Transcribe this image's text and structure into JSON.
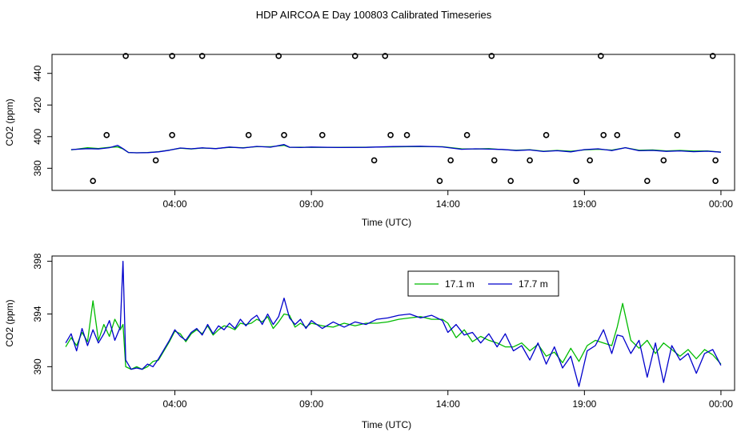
{
  "title": "HDP AIRCOA E  Day 100803  Calibrated Timeseries",
  "colors": {
    "green": "#00bb00",
    "blue": "#0000cc",
    "axis": "#000000"
  },
  "chart_data": [
    {
      "type": "line",
      "panel": "top",
      "xlabel": "Time (UTC)",
      "ylabel": "CO2 (ppm)",
      "xlim": [
        -0.5,
        24.5
      ],
      "ylim": [
        366,
        452
      ],
      "x_ticks": [
        4,
        9,
        14,
        19,
        24
      ],
      "x_tick_labels": [
        "04:00",
        "09:00",
        "14:00",
        "19:00",
        "00:00"
      ],
      "y_ticks": [
        380,
        400,
        420,
        440
      ],
      "y_tick_labels": [
        "380",
        "400",
        "420",
        "440"
      ],
      "grid": false,
      "series": [
        {
          "color": "green",
          "x": [
            0.2,
            0.8,
            1.2,
            1.6,
            1.9,
            2.1,
            2.3,
            2.6,
            3.0,
            3.4,
            3.8,
            4.2,
            4.6,
            5.0,
            5.5,
            6.0,
            6.5,
            7.0,
            7.5,
            8.0,
            8.2,
            8.6,
            9.0,
            10.0,
            11.0,
            12.0,
            13.0,
            13.8,
            14.5,
            15.0,
            15.5,
            16.0,
            16.5,
            17.0,
            17.5,
            18.0,
            18.5,
            19.0,
            19.5,
            20.0,
            20.5,
            21.0,
            21.5,
            22.0,
            22.5,
            23.0,
            23.5,
            24.0
          ],
          "y": [
            391.6,
            393.0,
            392.5,
            393.2,
            393.5,
            392.2,
            390.0,
            389.8,
            390.0,
            390.5,
            391.5,
            392.7,
            392.2,
            392.8,
            392.5,
            393.2,
            393.0,
            393.6,
            393.6,
            394.5,
            393.2,
            393.3,
            393.2,
            393.2,
            393.3,
            393.5,
            393.7,
            393.6,
            392.3,
            392.2,
            392.4,
            391.8,
            391.4,
            391.7,
            390.8,
            391.3,
            390.8,
            391.6,
            392.0,
            391.5,
            393.0,
            391.4,
            391.6,
            391.0,
            391.3,
            390.9,
            391.0,
            390.2
          ]
        },
        {
          "color": "blue",
          "x": [
            0.2,
            0.8,
            1.2,
            1.6,
            1.9,
            2.1,
            2.3,
            2.6,
            3.0,
            3.4,
            3.8,
            4.2,
            4.6,
            5.0,
            5.5,
            6.0,
            6.5,
            7.0,
            7.5,
            8.0,
            8.2,
            8.6,
            9.0,
            10.0,
            11.0,
            12.0,
            13.0,
            13.8,
            14.5,
            15.0,
            15.5,
            16.0,
            16.5,
            17.0,
            17.5,
            18.0,
            18.5,
            19.0,
            19.5,
            20.0,
            20.5,
            21.0,
            21.5,
            22.0,
            22.5,
            23.0,
            23.5,
            24.0
          ],
          "y": [
            391.8,
            392.4,
            392.2,
            393.0,
            394.5,
            392.4,
            390.0,
            389.8,
            389.9,
            390.4,
            391.4,
            392.8,
            392.3,
            392.9,
            392.4,
            393.4,
            392.8,
            393.8,
            393.3,
            395.0,
            393.3,
            393.1,
            393.4,
            393.1,
            393.2,
            393.7,
            393.9,
            393.5,
            392.0,
            392.3,
            392.1,
            391.9,
            391.2,
            391.6,
            390.6,
            391.1,
            390.4,
            391.8,
            392.3,
            391.2,
            393.0,
            391.1,
            391.3,
            390.7,
            391.0,
            390.5,
            390.8,
            390.2
          ]
        }
      ],
      "calibration_points": {
        "x": [
          1.5,
          2.2,
          1.0,
          3.3,
          3.9,
          3.9,
          5.0,
          6.7,
          7.8,
          8.0,
          9.4,
          10.6,
          11.3,
          11.7,
          11.9,
          12.5,
          13.7,
          14.1,
          14.7,
          15.6,
          15.7,
          16.3,
          17.0,
          17.6,
          18.7,
          19.2,
          19.6,
          19.7,
          20.2,
          21.3,
          21.9,
          22.4,
          23.7,
          23.8,
          23.8
        ],
        "y": [
          401,
          451,
          372,
          385,
          451,
          401,
          451,
          401,
          451,
          401,
          401,
          451,
          385,
          451,
          401,
          401,
          372,
          385,
          401,
          451,
          385,
          372,
          385,
          401,
          372,
          385,
          451,
          401,
          401,
          372,
          385,
          401,
          451,
          385,
          372
        ]
      }
    },
    {
      "type": "line",
      "panel": "bottom",
      "xlabel": "Time (UTC)",
      "ylabel": "CO2 (ppm)",
      "xlim": [
        -0.5,
        24.5
      ],
      "ylim": [
        388.2,
        398.4
      ],
      "x_ticks": [
        4,
        9,
        14,
        19,
        24
      ],
      "x_tick_labels": [
        "04:00",
        "09:00",
        "14:00",
        "19:00",
        "00:00"
      ],
      "y_ticks": [
        390,
        394,
        398
      ],
      "y_tick_labels": [
        "390",
        "394",
        "398"
      ],
      "grid": false,
      "legend": "top-center",
      "series": [
        {
          "name": "17.1 m",
          "color": "green",
          "x": [
            0.0,
            0.2,
            0.4,
            0.6,
            0.8,
            1.0,
            1.2,
            1.4,
            1.6,
            1.8,
            2.0,
            2.1,
            2.2,
            2.4,
            2.6,
            2.8,
            3.0,
            3.2,
            3.4,
            3.6,
            3.8,
            4.0,
            4.2,
            4.4,
            4.6,
            4.8,
            5.0,
            5.2,
            5.4,
            5.6,
            5.8,
            6.0,
            6.2,
            6.4,
            6.6,
            6.8,
            7.0,
            7.2,
            7.4,
            7.6,
            7.8,
            8.0,
            8.2,
            8.4,
            8.6,
            8.8,
            9.0,
            9.4,
            9.8,
            10.2,
            10.6,
            11.0,
            11.4,
            11.8,
            12.2,
            12.6,
            13.0,
            13.4,
            13.8,
            14.0,
            14.3,
            14.6,
            14.9,
            15.2,
            15.5,
            15.8,
            16.1,
            16.4,
            16.7,
            17.0,
            17.3,
            17.6,
            17.9,
            18.2,
            18.5,
            18.8,
            19.1,
            19.4,
            19.7,
            20.0,
            20.2,
            20.4,
            20.7,
            21.0,
            21.3,
            21.6,
            21.9,
            22.2,
            22.5,
            22.8,
            23.1,
            23.4,
            23.7,
            24.0
          ],
          "y": [
            391.5,
            392.2,
            391.6,
            392.6,
            391.9,
            395.0,
            392.0,
            393.2,
            392.3,
            393.6,
            392.8,
            393.2,
            390.0,
            389.8,
            390.0,
            389.8,
            390.0,
            390.4,
            390.5,
            391.2,
            391.9,
            392.7,
            392.5,
            391.9,
            392.5,
            392.8,
            392.5,
            393.1,
            392.4,
            392.8,
            393.1,
            393.0,
            392.8,
            393.3,
            393.2,
            393.3,
            393.6,
            393.4,
            393.8,
            392.9,
            393.4,
            394.0,
            393.9,
            393.0,
            393.3,
            393.0,
            393.3,
            393.1,
            393.0,
            393.3,
            393.1,
            393.3,
            393.3,
            393.4,
            393.6,
            393.7,
            393.8,
            393.6,
            393.6,
            393.3,
            392.2,
            392.8,
            391.9,
            392.3,
            392.0,
            391.8,
            391.5,
            391.5,
            391.8,
            391.2,
            391.7,
            390.8,
            391.1,
            390.3,
            391.4,
            390.4,
            391.6,
            392.0,
            391.8,
            391.6,
            393.0,
            394.8,
            392.0,
            391.4,
            392.0,
            391.0,
            391.8,
            391.3,
            390.8,
            391.3,
            390.6,
            391.3,
            390.9,
            390.2
          ]
        },
        {
          "name": "17.7 m",
          "color": "blue",
          "x": [
            0.0,
            0.2,
            0.4,
            0.6,
            0.8,
            1.0,
            1.2,
            1.4,
            1.6,
            1.8,
            2.0,
            2.1,
            2.2,
            2.4,
            2.6,
            2.8,
            3.0,
            3.2,
            3.4,
            3.6,
            3.8,
            4.0,
            4.2,
            4.4,
            4.6,
            4.8,
            5.0,
            5.2,
            5.4,
            5.6,
            5.8,
            6.0,
            6.2,
            6.4,
            6.6,
            6.8,
            7.0,
            7.2,
            7.4,
            7.6,
            7.8,
            8.0,
            8.2,
            8.4,
            8.6,
            8.8,
            9.0,
            9.4,
            9.8,
            10.2,
            10.6,
            11.0,
            11.4,
            11.8,
            12.2,
            12.6,
            13.0,
            13.4,
            13.8,
            14.0,
            14.3,
            14.6,
            14.9,
            15.2,
            15.5,
            15.8,
            16.1,
            16.4,
            16.7,
            17.0,
            17.3,
            17.6,
            17.9,
            18.2,
            18.5,
            18.8,
            19.1,
            19.4,
            19.7,
            20.0,
            20.2,
            20.4,
            20.7,
            21.0,
            21.3,
            21.6,
            21.9,
            22.2,
            22.5,
            22.8,
            23.1,
            23.4,
            23.7,
            24.0
          ],
          "y": [
            391.8,
            392.5,
            391.2,
            392.9,
            391.6,
            392.8,
            391.8,
            392.5,
            393.5,
            392.0,
            393.0,
            398.0,
            390.5,
            389.8,
            389.9,
            389.8,
            390.2,
            390.0,
            390.6,
            391.3,
            392.0,
            392.8,
            392.3,
            392.0,
            392.6,
            392.9,
            392.4,
            393.2,
            392.5,
            393.1,
            392.8,
            393.3,
            392.9,
            393.6,
            393.1,
            393.6,
            393.9,
            393.2,
            394.0,
            393.2,
            393.8,
            395.2,
            393.7,
            393.2,
            393.6,
            392.9,
            393.5,
            392.9,
            393.4,
            393.0,
            393.4,
            393.2,
            393.6,
            393.7,
            393.9,
            394.0,
            393.7,
            393.9,
            393.5,
            392.6,
            393.2,
            392.4,
            392.6,
            391.8,
            392.5,
            391.5,
            392.5,
            391.2,
            391.6,
            390.5,
            391.8,
            390.2,
            391.5,
            389.9,
            390.8,
            388.5,
            391.2,
            391.6,
            392.8,
            391.0,
            392.4,
            392.3,
            391.0,
            392.0,
            389.2,
            391.8,
            388.8,
            391.6,
            390.5,
            391.0,
            389.5,
            391.0,
            391.3,
            390.1
          ]
        }
      ]
    }
  ]
}
